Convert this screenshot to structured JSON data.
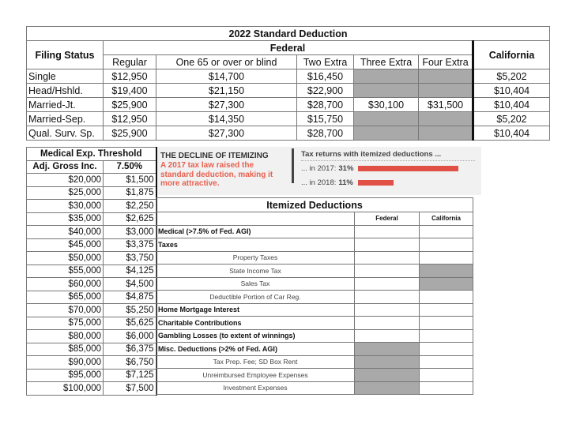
{
  "standard": {
    "title": "2022 Standard Deduction",
    "filing_status": "Filing Status",
    "federal": "Federal",
    "california": "California",
    "cols": [
      "Regular",
      "One 65 or over or blind",
      "Two Extra",
      "Three Extra",
      "Four Extra"
    ],
    "rows": [
      {
        "status": "Single",
        "vals": [
          "$12,950",
          "$14,700",
          "$16,450",
          "",
          ""
        ],
        "ca": "$5,202"
      },
      {
        "status": "Head/Hshld.",
        "vals": [
          "$19,400",
          "$21,150",
          "$22,900",
          "",
          ""
        ],
        "ca": "$10,404"
      },
      {
        "status": "Married-Jt.",
        "vals": [
          "$25,900",
          "$27,300",
          "$28,700",
          "$30,100",
          "$31,500"
        ],
        "ca": "$10,404"
      },
      {
        "status": "Married-Sep.",
        "vals": [
          "$12,950",
          "$14,350",
          "$15,750",
          "",
          ""
        ],
        "ca": "$5,202"
      },
      {
        "status": "Qual. Surv. Sp.",
        "vals": [
          "$25,900",
          "$27,300",
          "$28,700",
          "",
          ""
        ],
        "ca": "$10,404"
      }
    ]
  },
  "medical": {
    "title": "Medical Exp. Threshold",
    "col1": "Adj. Gross Inc.",
    "col2": "7.50%",
    "rows": [
      [
        "$20,000",
        "$1,500"
      ],
      [
        "$25,000",
        "$1,875"
      ],
      [
        "$30,000",
        "$2,250"
      ],
      [
        "$35,000",
        "$2,625"
      ],
      [
        "$40,000",
        "$3,000"
      ],
      [
        "$45,000",
        "$3,375"
      ],
      [
        "$50,000",
        "$3,750"
      ],
      [
        "$55,000",
        "$4,125"
      ],
      [
        "$60,000",
        "$4,500"
      ],
      [
        "$65,000",
        "$4,875"
      ],
      [
        "$70,000",
        "$5,250"
      ],
      [
        "$75,000",
        "$5,625"
      ],
      [
        "$80,000",
        "$6,000"
      ],
      [
        "$85,000",
        "$6,375"
      ],
      [
        "$90,000",
        "$6,750"
      ],
      [
        "$95,000",
        "$7,125"
      ],
      [
        "$100,000",
        "$7,500"
      ]
    ]
  },
  "infographic": {
    "title": "THE DECLINE OF ITEMIZING",
    "subtitle": "A 2017 tax law raised the standard deduction, making it more attractive.",
    "right_title": "Tax returns with itemized deductions ...",
    "bars": [
      {
        "label": "... in 2017:",
        "value": "31%",
        "pct": 31
      },
      {
        "label": "... in 2018:",
        "value": "11%",
        "pct": 11
      }
    ],
    "bar_color": "#e05045"
  },
  "itemized": {
    "title": "Itemized Deductions",
    "federal": "Federal",
    "california": "California",
    "rows": [
      {
        "label": "Medical (>7.5% of Fed. AGI)",
        "bold": true,
        "fg": false,
        "cg": false
      },
      {
        "label": "Taxes",
        "bold": true,
        "fg": false,
        "cg": false
      },
      {
        "label": "Property Taxes",
        "bold": false,
        "fg": false,
        "cg": false
      },
      {
        "label": "State Income Tax",
        "bold": false,
        "fg": false,
        "cg": true
      },
      {
        "label": "Sales Tax",
        "bold": false,
        "fg": false,
        "cg": true
      },
      {
        "label": "Deductible Portion of Car Reg.",
        "bold": false,
        "fg": false,
        "cg": false
      },
      {
        "label": "Home Mortgage Interest",
        "bold": true,
        "fg": false,
        "cg": false
      },
      {
        "label": "Charitable Contributions",
        "bold": true,
        "fg": false,
        "cg": false
      },
      {
        "label": "Gambling Losses (to extent of winnings)",
        "bold": true,
        "fg": false,
        "cg": false
      },
      {
        "label": "Misc. Deductions (>2% of Fed. AGI)",
        "bold": true,
        "fg": true,
        "cg": false
      },
      {
        "label": "Tax Prep. Fee; SD Box Rent",
        "bold": false,
        "fg": true,
        "cg": false
      },
      {
        "label": "Unreimbursed Employee Expenses",
        "bold": false,
        "fg": true,
        "cg": false
      },
      {
        "label": "Investment Expenses",
        "bold": false,
        "fg": true,
        "cg": false
      }
    ]
  }
}
